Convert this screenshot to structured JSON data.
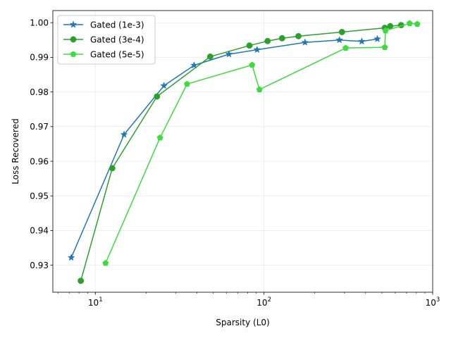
{
  "chart_data": {
    "type": "line",
    "title": "",
    "xlabel": "Sparsity (L0)",
    "ylabel": "Loss Recovered",
    "xscale": "log",
    "xlim": [
      5.6,
      1000
    ],
    "ylim": [
      0.9222,
      1.0035
    ],
    "xticks": [
      {
        "value": 10,
        "base": "10",
        "exp": "1"
      },
      {
        "value": 100,
        "base": "10",
        "exp": "2"
      },
      {
        "value": 1000,
        "base": "10",
        "exp": "3"
      }
    ],
    "yticks": [
      0.93,
      0.94,
      0.95,
      0.96,
      0.97,
      0.98,
      0.99,
      1.0
    ],
    "ytick_labels": [
      "0.93",
      "0.94",
      "0.95",
      "0.96",
      "0.97",
      "0.98",
      "0.99",
      "1.00"
    ],
    "grid": true,
    "legend_position": "top-left",
    "series": [
      {
        "name": "Gated (1e-3)",
        "color": "#1f77b4",
        "marker": "star",
        "x": [
          7.2,
          14.8,
          25.5,
          38.5,
          62,
          91,
          175,
          280,
          380,
          470
        ],
        "y": [
          0.9322,
          0.9677,
          0.9818,
          0.9877,
          0.9909,
          0.9922,
          0.9943,
          0.995,
          0.9946,
          0.9953
        ]
      },
      {
        "name": "Gated (3e-4)",
        "color": "#2ca02c",
        "marker": "circle",
        "x": [
          8.2,
          12.6,
          23.2,
          48,
          82,
          105,
          128,
          160,
          290,
          520,
          560,
          650
        ],
        "y": [
          0.9255,
          0.958,
          0.9787,
          0.9902,
          0.9934,
          0.9947,
          0.9955,
          0.9961,
          0.9973,
          0.9985,
          0.999,
          0.9993
        ]
      },
      {
        "name": "Gated (5e-5)",
        "color": "#3ddc3d",
        "marker": "pentagon",
        "x": [
          11.5,
          24.2,
          35,
          85,
          94,
          305,
          520,
          525,
          730,
          810
        ],
        "y": [
          0.9306,
          0.9668,
          0.9823,
          0.9878,
          0.9807,
          0.9927,
          0.9929,
          0.9977,
          0.9998,
          0.9996
        ]
      }
    ]
  }
}
